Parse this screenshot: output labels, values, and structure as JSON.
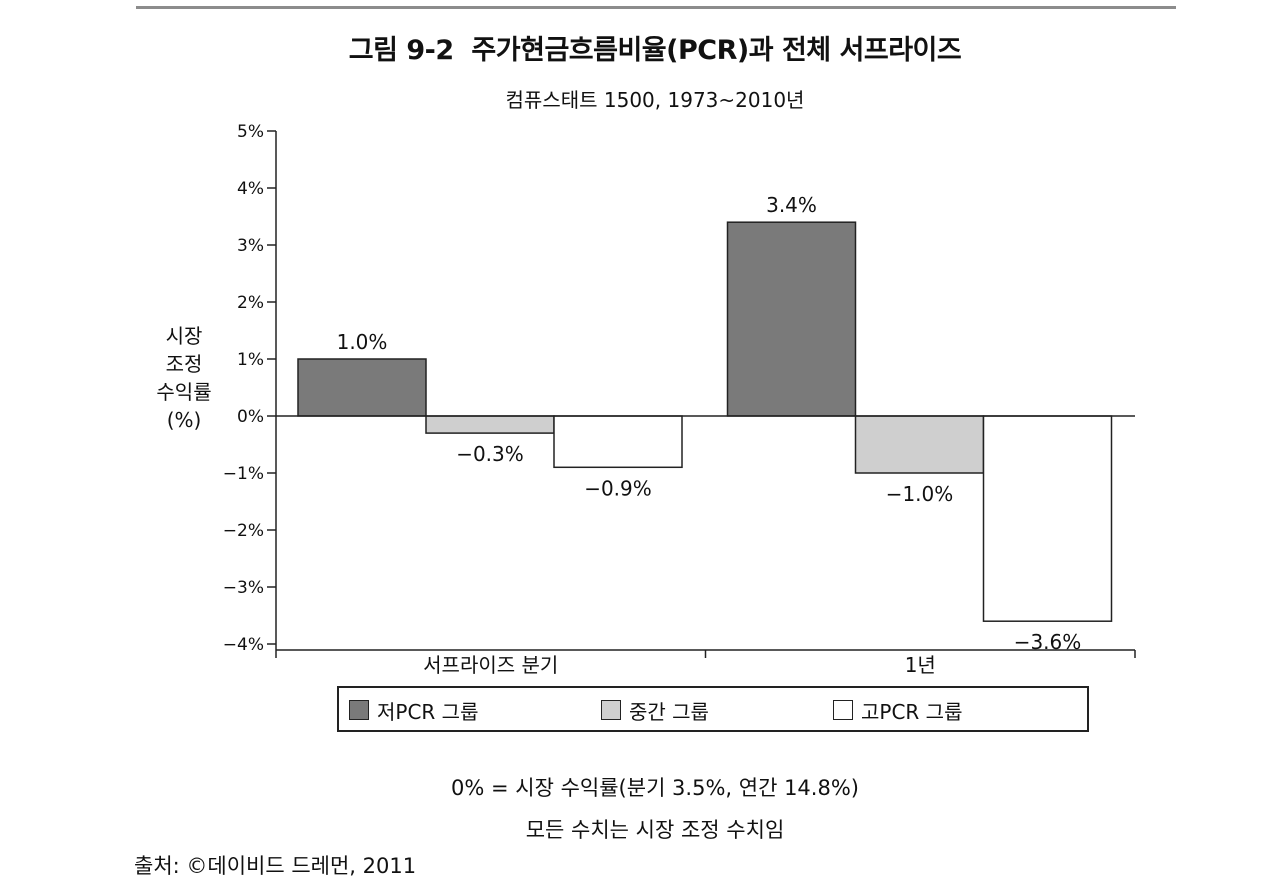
{
  "header": {
    "figure_label": "그림 9-2",
    "title": "주가현금흐름비율(PCR)과 전체 서프라이즈",
    "subtitle": "컴퓨스태트 1500, 1973~2010년"
  },
  "chart_data": {
    "type": "bar",
    "title": "그림 9-2 주가현금흐름비율(PCR)과 전체 서프라이즈",
    "subtitle": "컴퓨스태트 1500, 1973~2010년",
    "ylabel_lines": [
      "시장",
      "조정",
      "수익률",
      "(%)"
    ],
    "xlabel": "",
    "categories": [
      "서프라이즈 분기",
      "1년"
    ],
    "ylim": [
      -4,
      5
    ],
    "yticks": [
      5,
      4,
      3,
      2,
      1,
      0,
      -1,
      -2,
      -3,
      -4
    ],
    "ytick_labels": [
      "5%",
      "4%",
      "3%",
      "2%",
      "1%",
      "0%",
      "−1%",
      "−2%",
      "−3%",
      "−4%"
    ],
    "series": [
      {
        "name": "저PCR 그룹",
        "color": "#7a7a7a",
        "values": [
          1.0,
          3.4
        ],
        "labels": [
          "1.0%",
          "3.4%"
        ]
      },
      {
        "name": "중간 그룹",
        "color": "#cfcfcf",
        "values": [
          -0.3,
          -1.0
        ],
        "labels": [
          "−0.3%",
          "−1.0%"
        ]
      },
      {
        "name": "고PCR 그룹",
        "color": "#ffffff",
        "values": [
          -0.9,
          -3.6
        ],
        "labels": [
          "−0.9%",
          "−3.6%"
        ]
      }
    ],
    "grid": false,
    "legend_position": "bottom"
  },
  "notes": {
    "line1": "0% = 시장 수익률(분기 3.5%, 연간 14.8%)",
    "line2": "모든 수치는 시장 조정 수치임"
  },
  "source": "출처: ©데이비드 드레먼, 2011"
}
